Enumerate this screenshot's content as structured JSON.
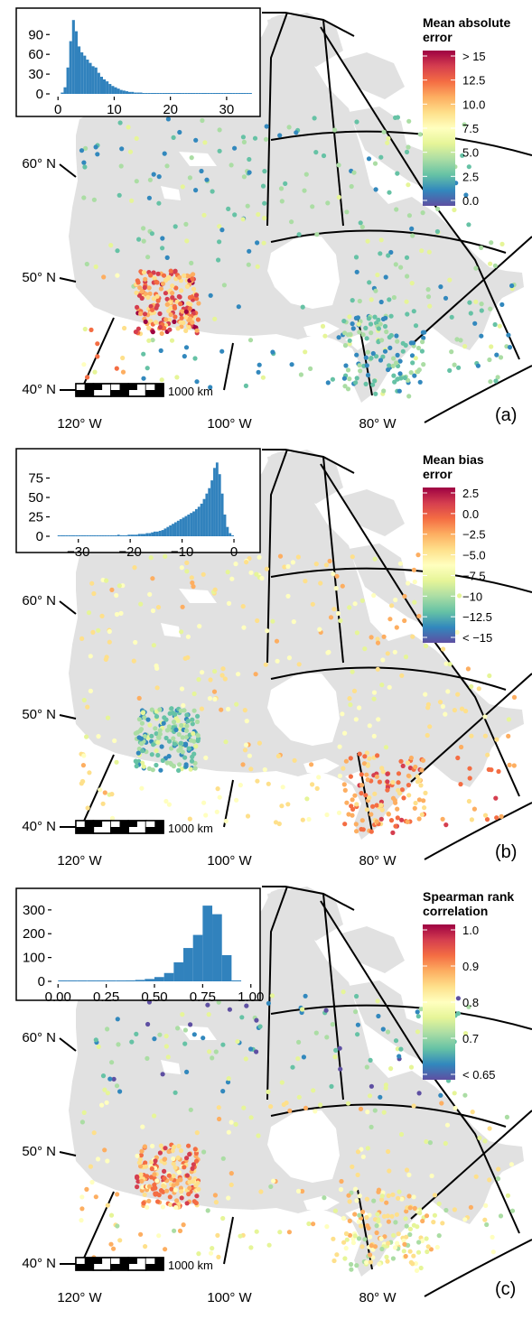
{
  "panels": [
    {
      "label": "(a)",
      "legend_title": [
        "Mean absolute",
        "error"
      ],
      "legend_ticks": [
        "> 15",
        "12.5",
        "10.0",
        "7.5",
        "5.0",
        "2.5",
        "0.0"
      ],
      "legend_colors": [
        "#9e0142",
        "#d53e4f",
        "#f46d43",
        "#fdae61",
        "#fee08b",
        "#ffffbf",
        "#e6f598",
        "#abdda4",
        "#66c2a5",
        "#3288bd",
        "#5e4fa2"
      ],
      "mode": "mae"
    },
    {
      "label": "(b)",
      "legend_title": [
        "Mean bias",
        "error"
      ],
      "legend_ticks": [
        "2.5",
        "0.0",
        "−2.5",
        "−5.0",
        "−7.5",
        "−10",
        "−12.5",
        "< −15"
      ],
      "legend_colors": [
        "#9e0142",
        "#d53e4f",
        "#f46d43",
        "#fdae61",
        "#fee08b",
        "#ffffbf",
        "#e6f598",
        "#abdda4",
        "#66c2a5",
        "#3288bd",
        "#5e4fa2"
      ],
      "mode": "mbe"
    },
    {
      "label": "(c)",
      "legend_title": [
        "Spearman rank",
        "correlation"
      ],
      "legend_ticks": [
        "1.0",
        "0.9",
        "0.8",
        "0.7",
        "< 0.65"
      ],
      "legend_colors": [
        "#9e0142",
        "#d53e4f",
        "#f46d43",
        "#fdae61",
        "#fee08b",
        "#ffffbf",
        "#e6f598",
        "#abdda4",
        "#66c2a5",
        "#3288bd",
        "#5e4fa2"
      ],
      "mode": "src"
    }
  ],
  "map_labels": {
    "lat": [
      "60° N",
      "50° N",
      "40° N"
    ],
    "lon": [
      "120° W",
      "100° W",
      "80° W"
    ],
    "scale_bar": "1000 km"
  },
  "chart_data": [
    {
      "type": "bar",
      "title": "",
      "xlabel": "",
      "ylabel": "",
      "x_ticks": [
        "0",
        "10",
        "20",
        "30"
      ],
      "y_ticks": [
        "0",
        "30",
        "60",
        "90"
      ],
      "xlim": [
        -1,
        35
      ],
      "ylim": [
        0,
        115
      ],
      "bin_width": 0.5,
      "bin_start": 0.0,
      "values": [
        0,
        2,
        10,
        40,
        80,
        112,
        95,
        72,
        63,
        58,
        52,
        47,
        42,
        40,
        32,
        26,
        22,
        19,
        15,
        12,
        10,
        8,
        6,
        5,
        4,
        3,
        3,
        2,
        2,
        2,
        1,
        1,
        1,
        1,
        1,
        1,
        1,
        1,
        1,
        1,
        1,
        1,
        1,
        1,
        1,
        1,
        1,
        1,
        1,
        1,
        1,
        1,
        1,
        1,
        1,
        1,
        1,
        1,
        1,
        1,
        1,
        1,
        1,
        1,
        1,
        1,
        1,
        1,
        1
      ]
    },
    {
      "type": "bar",
      "title": "",
      "xlabel": "",
      "ylabel": "",
      "x_ticks": [
        "−30",
        "−20",
        "−10",
        "0"
      ],
      "y_ticks": [
        "0",
        "25",
        "50",
        "75"
      ],
      "xlim": [
        -35,
        4
      ],
      "ylim": [
        0,
        100
      ],
      "bin_width": 0.5,
      "bin_start": -34.0,
      "values": [
        1,
        1,
        1,
        1,
        1,
        1,
        1,
        1,
        1,
        1,
        1,
        1,
        1,
        1,
        1,
        1,
        1,
        1,
        1,
        1,
        1,
        1,
        1,
        2,
        1,
        1,
        1,
        2,
        2,
        2,
        2,
        3,
        3,
        3,
        4,
        4,
        5,
        6,
        6,
        7,
        8,
        10,
        12,
        14,
        16,
        18,
        20,
        22,
        24,
        26,
        28,
        30,
        32,
        35,
        38,
        42,
        48,
        55,
        62,
        72,
        88,
        95,
        80,
        55,
        28,
        12,
        4,
        1
      ]
    },
    {
      "type": "bar",
      "title": "",
      "xlabel": "",
      "ylabel": "",
      "x_ticks": [
        "0.00",
        "0.25",
        "0.50",
        "0.75",
        "1.00"
      ],
      "y_ticks": [
        "0",
        "100",
        "200",
        "300"
      ],
      "xlim": [
        -0.02,
        1.02
      ],
      "ylim": [
        0,
        345
      ],
      "bin_width": 0.05,
      "bin_start": 0.0,
      "values": [
        1,
        1,
        1,
        2,
        2,
        3,
        3,
        4,
        6,
        10,
        18,
        35,
        80,
        140,
        195,
        318,
        282,
        110,
        4,
        0
      ]
    }
  ]
}
